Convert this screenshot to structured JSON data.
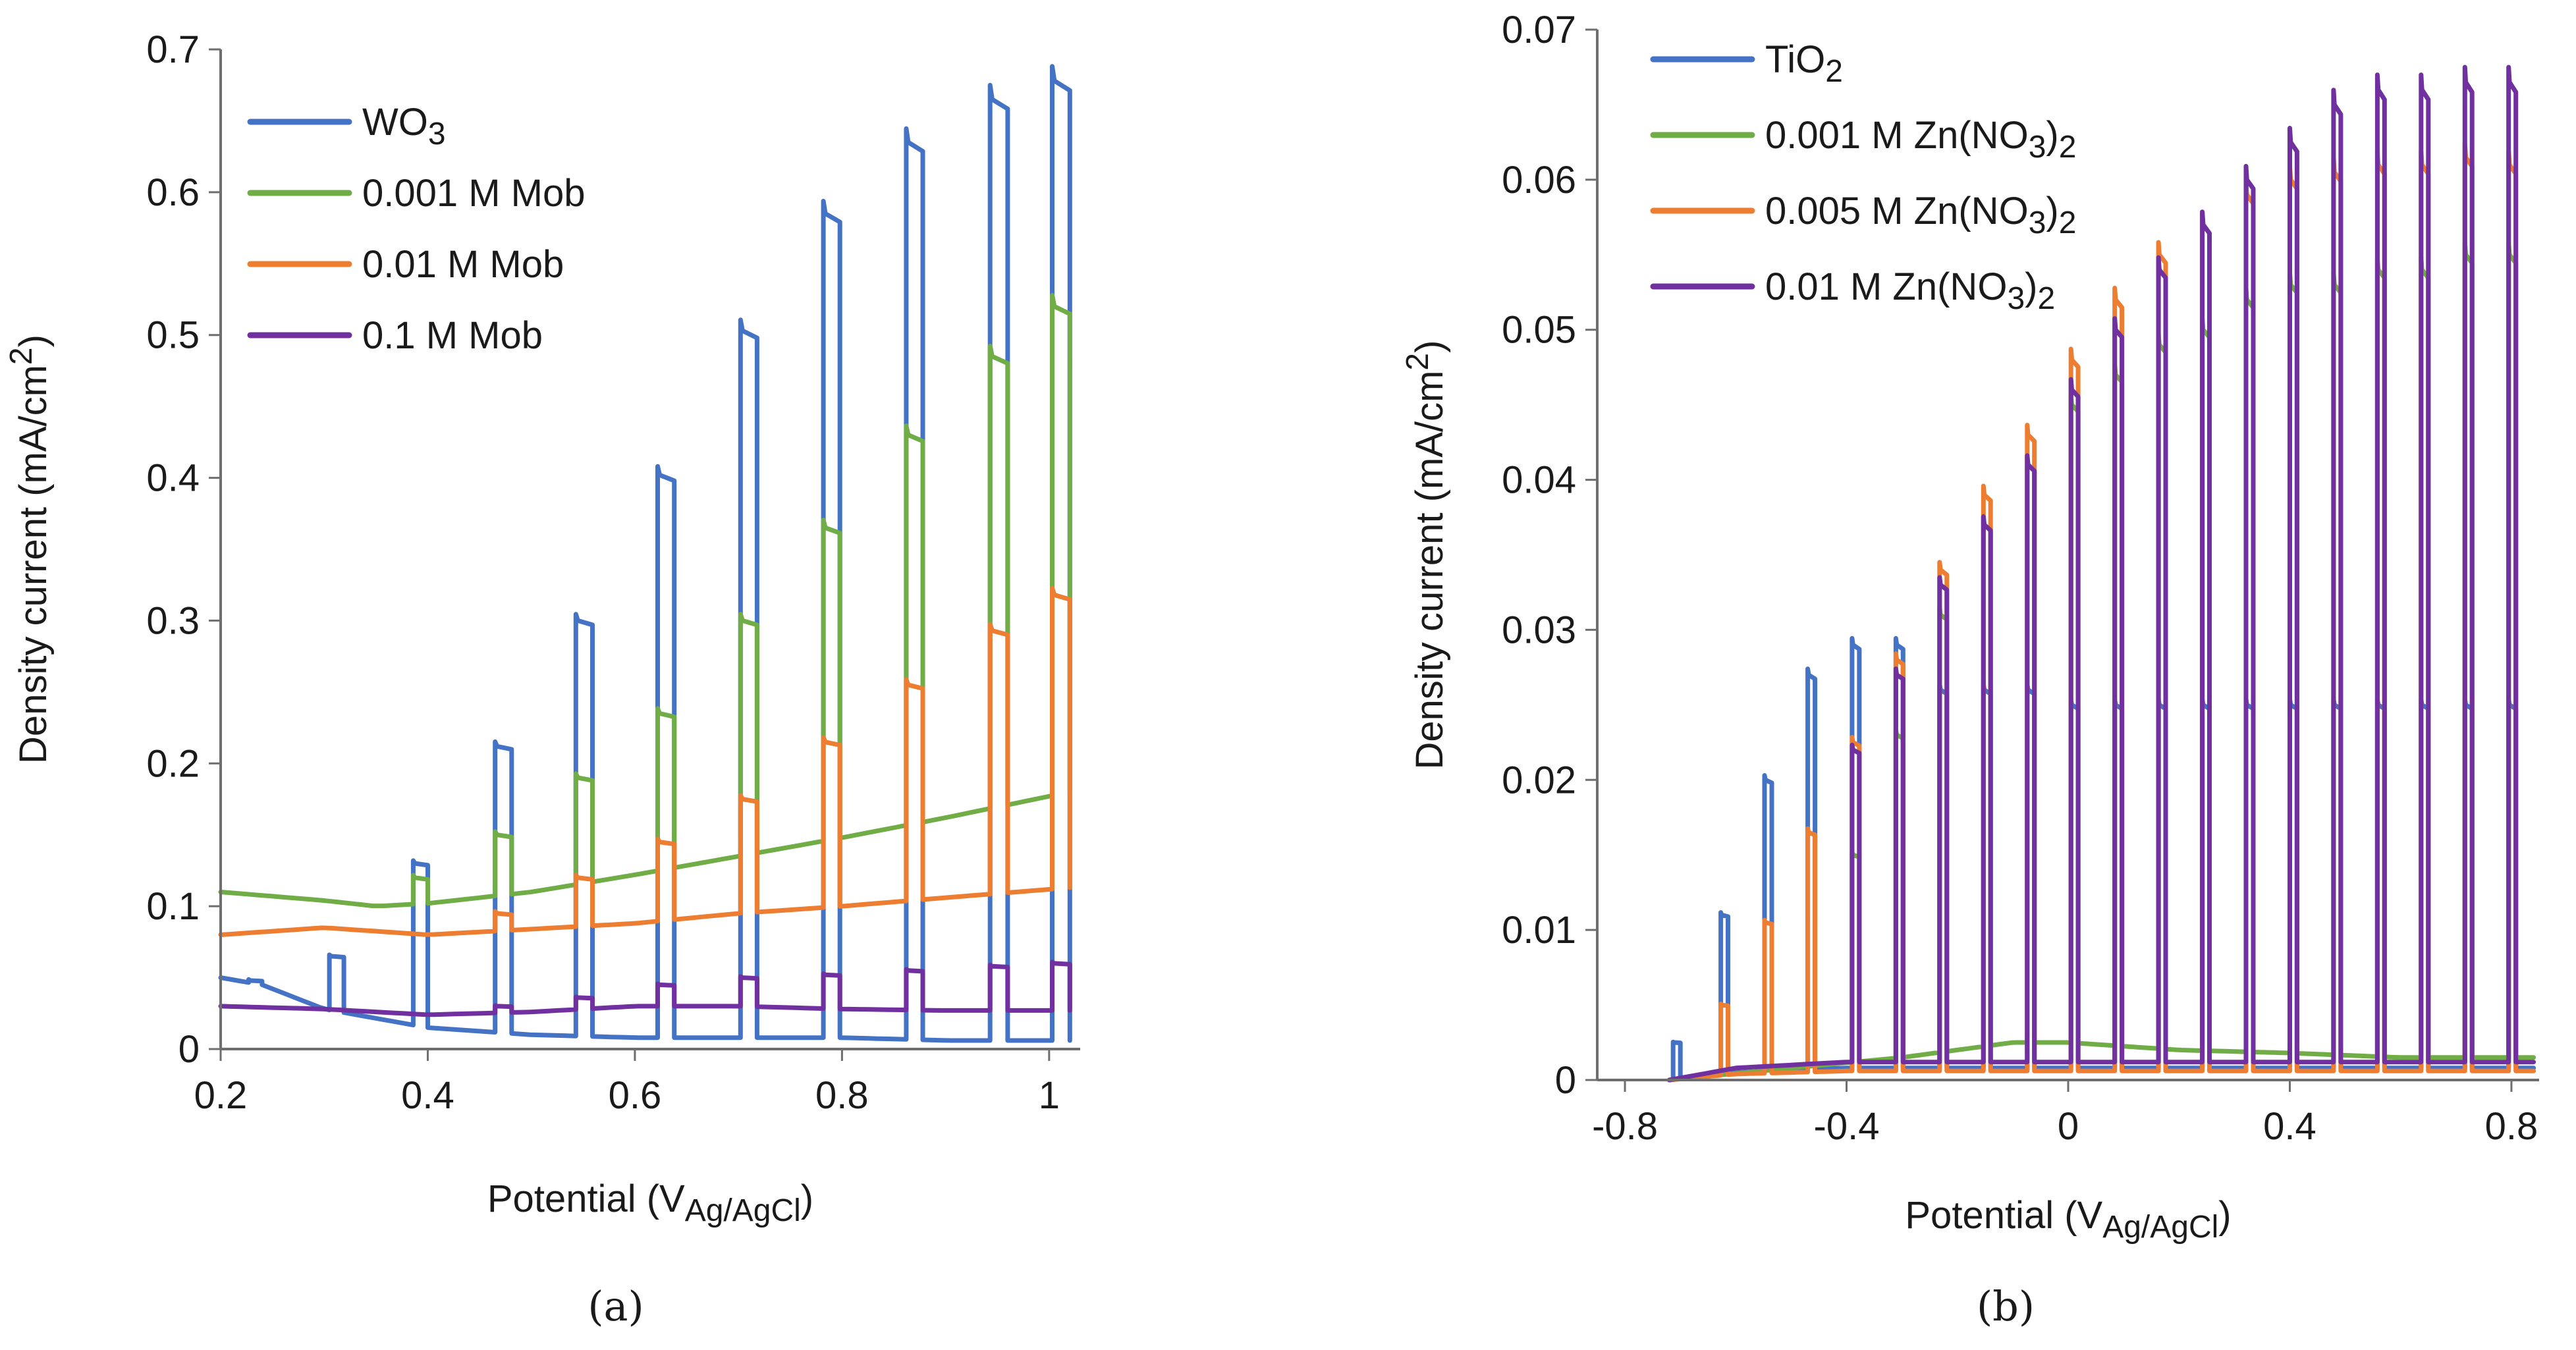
{
  "chart_data": [
    {
      "type": "line",
      "caption": "(a)",
      "xlabel_main": "Potential (V",
      "xlabel_sub": "Ag/AgCl",
      "xlabel_close": ")",
      "ylabel_main": "Density current (mA/cm",
      "ylabel_sup": "2",
      "ylabel_close": ")",
      "xlim": [
        0.2,
        1.03
      ],
      "ylim": [
        0,
        0.7
      ],
      "xticks": [
        0.2,
        0.4,
        0.6,
        0.8,
        1.0
      ],
      "xtick_labels": [
        "0.2",
        "0.4",
        "0.6",
        "0.8",
        "1"
      ],
      "yticks": [
        0,
        0.1,
        0.2,
        0.3,
        0.4,
        0.5,
        0.6,
        0.7
      ],
      "ytick_labels": [
        "0",
        "0.1",
        "0.2",
        "0.3",
        "0.4",
        "0.5",
        "0.6",
        "0.7"
      ],
      "legend_position": "top-left",
      "series": [
        {
          "name": "WO",
          "name_sub": "3",
          "name_suffix": "",
          "color": "#4472C4",
          "dark": {
            "x": [
              0.2,
              0.24,
              0.3,
              0.4,
              0.5,
              0.6,
              0.7,
              0.8,
              0.9,
              1.02
            ],
            "y": [
              0.05,
              0.045,
              0.028,
              0.015,
              0.01,
              0.008,
              0.008,
              0.008,
              0.006,
              0.006
            ]
          },
          "pulses": [
            {
              "x0": 0.227,
              "x1": 0.24,
              "on": 0.048
            },
            {
              "x0": 0.305,
              "x1": 0.319,
              "on": 0.065
            },
            {
              "x0": 0.386,
              "x1": 0.4,
              "on": 0.13
            },
            {
              "x0": 0.465,
              "x1": 0.481,
              "on": 0.212
            },
            {
              "x0": 0.543,
              "x1": 0.559,
              "on": 0.3
            },
            {
              "x0": 0.622,
              "x1": 0.638,
              "on": 0.402
            },
            {
              "x0": 0.702,
              "x1": 0.718,
              "on": 0.503
            },
            {
              "x0": 0.782,
              "x1": 0.798,
              "on": 0.585
            },
            {
              "x0": 0.862,
              "x1": 0.878,
              "on": 0.635
            },
            {
              "x0": 0.943,
              "x1": 0.96,
              "on": 0.665
            },
            {
              "x0": 1.003,
              "x1": 1.02,
              "on": 0.678
            }
          ]
        },
        {
          "name": "0.001 M Mob",
          "name_sub": "",
          "name_suffix": "",
          "color": "#70AD47",
          "dark": {
            "x": [
              0.2,
              0.3,
              0.35,
              0.4,
              0.5,
              0.6,
              0.7,
              0.8,
              0.9,
              1.02
            ],
            "y": [
              0.11,
              0.104,
              0.1,
              0.102,
              0.11,
              0.122,
              0.135,
              0.148,
              0.162,
              0.18
            ]
          },
          "pulses": [
            {
              "x0": 0.386,
              "x1": 0.4,
              "on": 0.12
            },
            {
              "x0": 0.465,
              "x1": 0.481,
              "on": 0.15
            },
            {
              "x0": 0.543,
              "x1": 0.559,
              "on": 0.19
            },
            {
              "x0": 0.622,
              "x1": 0.638,
              "on": 0.235
            },
            {
              "x0": 0.702,
              "x1": 0.718,
              "on": 0.3
            },
            {
              "x0": 0.782,
              "x1": 0.798,
              "on": 0.365
            },
            {
              "x0": 0.862,
              "x1": 0.878,
              "on": 0.43
            },
            {
              "x0": 0.943,
              "x1": 0.96,
              "on": 0.485
            },
            {
              "x0": 1.003,
              "x1": 1.02,
              "on": 0.52
            }
          ]
        },
        {
          "name": "0.01 M  Mob",
          "name_sub": "",
          "name_suffix": "",
          "color": "#ED7D31",
          "dark": {
            "x": [
              0.2,
              0.3,
              0.4,
              0.5,
              0.6,
              0.7,
              0.8,
              0.9,
              1.02
            ],
            "y": [
              0.08,
              0.085,
              0.08,
              0.084,
              0.088,
              0.095,
              0.1,
              0.106,
              0.113
            ]
          },
          "pulses": [
            {
              "x0": 0.465,
              "x1": 0.481,
              "on": 0.095
            },
            {
              "x0": 0.543,
              "x1": 0.559,
              "on": 0.12
            },
            {
              "x0": 0.622,
              "x1": 0.638,
              "on": 0.145
            },
            {
              "x0": 0.702,
              "x1": 0.718,
              "on": 0.175
            },
            {
              "x0": 0.782,
              "x1": 0.798,
              "on": 0.215
            },
            {
              "x0": 0.862,
              "x1": 0.878,
              "on": 0.255
            },
            {
              "x0": 0.943,
              "x1": 0.96,
              "on": 0.293
            },
            {
              "x0": 1.003,
              "x1": 1.02,
              "on": 0.318
            }
          ]
        },
        {
          "name": "0.1 M Mob",
          "name_sub": "",
          "name_suffix": "",
          "color": "#7030A0",
          "dark": {
            "x": [
              0.2,
              0.3,
              0.4,
              0.5,
              0.6,
              0.7,
              0.8,
              0.9,
              1.02
            ],
            "y": [
              0.03,
              0.028,
              0.024,
              0.026,
              0.03,
              0.03,
              0.028,
              0.027,
              0.027
            ]
          },
          "pulses": [
            {
              "x0": 0.465,
              "x1": 0.481,
              "on": 0.03
            },
            {
              "x0": 0.543,
              "x1": 0.559,
              "on": 0.036
            },
            {
              "x0": 0.622,
              "x1": 0.638,
              "on": 0.045
            },
            {
              "x0": 0.702,
              "x1": 0.718,
              "on": 0.05
            },
            {
              "x0": 0.782,
              "x1": 0.798,
              "on": 0.052
            },
            {
              "x0": 0.862,
              "x1": 0.878,
              "on": 0.055
            },
            {
              "x0": 0.943,
              "x1": 0.96,
              "on": 0.058
            },
            {
              "x0": 1.003,
              "x1": 1.02,
              "on": 0.06
            }
          ]
        }
      ]
    },
    {
      "type": "line",
      "caption": "(b)",
      "xlabel_main": "Potential (V",
      "xlabel_sub": "Ag/AgCl",
      "xlabel_close": ")",
      "ylabel_main": "Density current (mA/cm",
      "ylabel_sup": "2",
      "ylabel_close": ")",
      "xlim": [
        -0.85,
        0.85
      ],
      "ylim": [
        0,
        0.07
      ],
      "xticks": [
        -0.8,
        -0.4,
        0,
        0.4,
        0.8
      ],
      "xtick_labels": [
        "-0.8",
        "-0.4",
        "0",
        "0.4",
        "0.8"
      ],
      "yticks": [
        0,
        0.01,
        0.02,
        0.03,
        0.04,
        0.05,
        0.06,
        0.07
      ],
      "ytick_labels": [
        "0",
        "0.01",
        "0.02",
        "0.03",
        "0.04",
        "0.05",
        "0.06",
        "0.07"
      ],
      "legend_position": "top-left",
      "series": [
        {
          "name": "TiO",
          "name_sub": "2",
          "name_suffix": "",
          "color": "#4472C4",
          "dark": {
            "x": [
              -0.72,
              -0.6,
              -0.4,
              -0.2,
              0,
              0.4,
              0.84
            ],
            "y": [
              0.0,
              0.0005,
              0.0008,
              0.0008,
              0.0008,
              0.0008,
              0.0008
            ]
          },
          "pulses": [
            {
              "x0": -0.713,
              "x1": -0.7,
              "on": 0.0025
            },
            {
              "x0": -0.627,
              "x1": -0.614,
              "on": 0.011
            },
            {
              "x0": -0.548,
              "x1": -0.535,
              "on": 0.02
            },
            {
              "x0": -0.47,
              "x1": -0.457,
              "on": 0.027
            },
            {
              "x0": -0.39,
              "x1": -0.377,
              "on": 0.029
            },
            {
              "x0": -0.311,
              "x1": -0.298,
              "on": 0.029
            },
            {
              "x0": -0.232,
              "x1": -0.219,
              "on": 0.026
            },
            {
              "x0": -0.153,
              "x1": -0.14,
              "on": 0.026
            },
            {
              "x0": -0.074,
              "x1": -0.061,
              "on": 0.026
            },
            {
              "x0": 0.005,
              "x1": 0.018,
              "on": 0.025
            },
            {
              "x0": 0.084,
              "x1": 0.097,
              "on": 0.025
            },
            {
              "x0": 0.163,
              "x1": 0.176,
              "on": 0.025
            },
            {
              "x0": 0.242,
              "x1": 0.255,
              "on": 0.025
            },
            {
              "x0": 0.321,
              "x1": 0.334,
              "on": 0.025
            },
            {
              "x0": 0.4,
              "x1": 0.413,
              "on": 0.025
            },
            {
              "x0": 0.479,
              "x1": 0.492,
              "on": 0.025
            },
            {
              "x0": 0.558,
              "x1": 0.571,
              "on": 0.025
            },
            {
              "x0": 0.637,
              "x1": 0.65,
              "on": 0.025
            },
            {
              "x0": 0.716,
              "x1": 0.729,
              "on": 0.025
            },
            {
              "x0": 0.795,
              "x1": 0.808,
              "on": 0.025
            }
          ]
        },
        {
          "name": "0.001 M  Zn(NO",
          "name_sub": "3",
          "name_suffix": ")",
          "name_sub2": "2",
          "color": "#70AD47",
          "dark": {
            "x": [
              -0.72,
              -0.5,
              -0.3,
              -0.1,
              0,
              0.2,
              0.4,
              0.6,
              0.84
            ],
            "y": [
              0.0,
              0.0008,
              0.0015,
              0.0025,
              0.0025,
              0.002,
              0.0018,
              0.0015,
              0.0015
            ]
          },
          "pulses": [
            {
              "x0": -0.39,
              "x1": -0.377,
              "on": 0.015
            },
            {
              "x0": -0.311,
              "x1": -0.298,
              "on": 0.023
            },
            {
              "x0": -0.232,
              "x1": -0.219,
              "on": 0.031
            },
            {
              "x0": -0.153,
              "x1": -0.14,
              "on": 0.037
            },
            {
              "x0": -0.074,
              "x1": -0.061,
              "on": 0.041
            },
            {
              "x0": 0.005,
              "x1": 0.018,
              "on": 0.045
            },
            {
              "x0": 0.084,
              "x1": 0.097,
              "on": 0.047
            },
            {
              "x0": 0.163,
              "x1": 0.176,
              "on": 0.049
            },
            {
              "x0": 0.242,
              "x1": 0.255,
              "on": 0.05
            },
            {
              "x0": 0.321,
              "x1": 0.334,
              "on": 0.052
            },
            {
              "x0": 0.4,
              "x1": 0.413,
              "on": 0.053
            },
            {
              "x0": 0.479,
              "x1": 0.492,
              "on": 0.053
            },
            {
              "x0": 0.558,
              "x1": 0.571,
              "on": 0.054
            },
            {
              "x0": 0.637,
              "x1": 0.65,
              "on": 0.054
            },
            {
              "x0": 0.716,
              "x1": 0.729,
              "on": 0.055
            },
            {
              "x0": 0.795,
              "x1": 0.808,
              "on": 0.055
            }
          ]
        },
        {
          "name": "0.005 M  Zn(NO",
          "name_sub": "3",
          "name_suffix": ")",
          "name_sub2": "2",
          "color": "#ED7D31",
          "dark": {
            "x": [
              -0.72,
              -0.6,
              -0.4,
              -0.2,
              0,
              0.4,
              0.84
            ],
            "y": [
              0.0,
              0.0004,
              0.0006,
              0.0006,
              0.0006,
              0.0006,
              0.0006
            ]
          },
          "pulses": [
            {
              "x0": -0.627,
              "x1": -0.614,
              "on": 0.005
            },
            {
              "x0": -0.548,
              "x1": -0.535,
              "on": 0.0105
            },
            {
              "x0": -0.47,
              "x1": -0.457,
              "on": 0.0165
            },
            {
              "x0": -0.39,
              "x1": -0.377,
              "on": 0.0225
            },
            {
              "x0": -0.311,
              "x1": -0.298,
              "on": 0.028
            },
            {
              "x0": -0.232,
              "x1": -0.219,
              "on": 0.034
            },
            {
              "x0": -0.153,
              "x1": -0.14,
              "on": 0.039
            },
            {
              "x0": -0.074,
              "x1": -0.061,
              "on": 0.043
            },
            {
              "x0": 0.005,
              "x1": 0.018,
              "on": 0.048
            },
            {
              "x0": 0.084,
              "x1": 0.097,
              "on": 0.052
            },
            {
              "x0": 0.163,
              "x1": 0.176,
              "on": 0.055
            },
            {
              "x0": 0.242,
              "x1": 0.255,
              "on": 0.057
            },
            {
              "x0": 0.321,
              "x1": 0.334,
              "on": 0.059
            },
            {
              "x0": 0.4,
              "x1": 0.413,
              "on": 0.06
            },
            {
              "x0": 0.479,
              "x1": 0.492,
              "on": 0.0605
            },
            {
              "x0": 0.558,
              "x1": 0.571,
              "on": 0.061
            },
            {
              "x0": 0.637,
              "x1": 0.65,
              "on": 0.061
            },
            {
              "x0": 0.716,
              "x1": 0.729,
              "on": 0.0615
            },
            {
              "x0": 0.795,
              "x1": 0.808,
              "on": 0.061
            }
          ]
        },
        {
          "name": "0.01 M Zn(NO",
          "name_sub": "3",
          "name_suffix": ")",
          "name_sub2": "2",
          "color": "#7030A0",
          "dark": {
            "x": [
              -0.72,
              -0.6,
              -0.4,
              -0.2,
              0,
              0.4,
              0.84
            ],
            "y": [
              0.0,
              0.0008,
              0.0012,
              0.0012,
              0.0012,
              0.0012,
              0.0012
            ]
          },
          "pulses": [
            {
              "x0": -0.39,
              "x1": -0.377,
              "on": 0.022
            },
            {
              "x0": -0.311,
              "x1": -0.298,
              "on": 0.027
            },
            {
              "x0": -0.232,
              "x1": -0.219,
              "on": 0.033
            },
            {
              "x0": -0.153,
              "x1": -0.14,
              "on": 0.037
            },
            {
              "x0": -0.074,
              "x1": -0.061,
              "on": 0.041
            },
            {
              "x0": 0.005,
              "x1": 0.018,
              "on": 0.046
            },
            {
              "x0": 0.084,
              "x1": 0.097,
              "on": 0.05
            },
            {
              "x0": 0.163,
              "x1": 0.176,
              "on": 0.054
            },
            {
              "x0": 0.242,
              "x1": 0.255,
              "on": 0.057
            },
            {
              "x0": 0.321,
              "x1": 0.334,
              "on": 0.06
            },
            {
              "x0": 0.4,
              "x1": 0.413,
              "on": 0.0625
            },
            {
              "x0": 0.479,
              "x1": 0.492,
              "on": 0.065
            },
            {
              "x0": 0.558,
              "x1": 0.571,
              "on": 0.066
            },
            {
              "x0": 0.637,
              "x1": 0.65,
              "on": 0.066
            },
            {
              "x0": 0.716,
              "x1": 0.729,
              "on": 0.0665
            },
            {
              "x0": 0.795,
              "x1": 0.808,
              "on": 0.0665
            }
          ]
        }
      ]
    }
  ]
}
